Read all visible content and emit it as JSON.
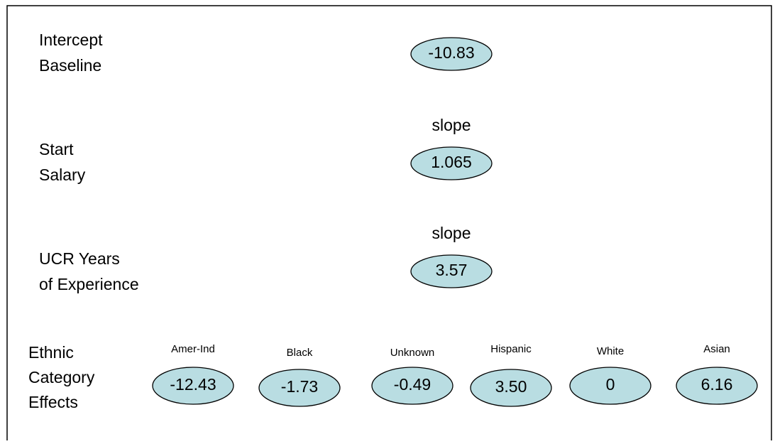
{
  "rows": [
    {
      "label": [
        "Intercept",
        "Baseline"
      ],
      "value": "-10.83"
    },
    {
      "label": [
        "Start",
        "Salary"
      ],
      "note": "slope",
      "value": "1.065"
    },
    {
      "label": [
        "UCR Years",
        "of Experience"
      ],
      "note": "slope",
      "value": "3.57"
    }
  ],
  "ethnic": {
    "label": [
      "Ethnic",
      "Category",
      "Effects"
    ],
    "groups": [
      {
        "name": "Amer-Ind",
        "value": "-12.43"
      },
      {
        "name": "Black",
        "value": "-1.73"
      },
      {
        "name": "Unknown",
        "value": "-0.49"
      },
      {
        "name": "Hispanic",
        "value": "3.50"
      },
      {
        "name": "White",
        "value": "0"
      },
      {
        "name": "Asian",
        "value": "6.16"
      }
    ]
  }
}
